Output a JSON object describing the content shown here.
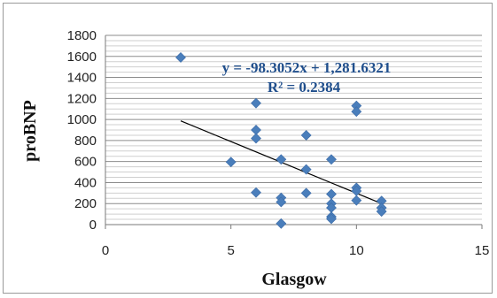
{
  "chart_data": {
    "type": "scatter",
    "xlabel": "Glasgow",
    "ylabel": "proBNP",
    "xlim": [
      0,
      15
    ],
    "ylim": [
      0,
      1800
    ],
    "x_ticks": [
      0,
      5,
      10,
      15
    ],
    "y_ticks": [
      0,
      200,
      400,
      600,
      800,
      1000,
      1200,
      1400,
      1600,
      1800
    ],
    "grid": "horizontal",
    "marker_color": "#4a7ebb",
    "trendline": {
      "type": "linear",
      "slope": -98.3052,
      "intercept": 1281.6321,
      "x_range": [
        3,
        11
      ],
      "color": "#000000",
      "equation_label": "y = -98.3052x + 1,281.6321",
      "r2_label": "R² = 0.2384"
    },
    "series": [
      {
        "points": [
          [
            3,
            1590
          ],
          [
            5,
            595
          ],
          [
            6,
            1155
          ],
          [
            6,
            900
          ],
          [
            6,
            820
          ],
          [
            6,
            305
          ],
          [
            7,
            620
          ],
          [
            7,
            255
          ],
          [
            7,
            215
          ],
          [
            7,
            10
          ],
          [
            8,
            850
          ],
          [
            8,
            525
          ],
          [
            8,
            300
          ],
          [
            9,
            620
          ],
          [
            9,
            290
          ],
          [
            9,
            200
          ],
          [
            9,
            160
          ],
          [
            9,
            75
          ],
          [
            9,
            55
          ],
          [
            10,
            1130
          ],
          [
            10,
            1075
          ],
          [
            10,
            350
          ],
          [
            10,
            320
          ],
          [
            10,
            230
          ],
          [
            11,
            225
          ],
          [
            11,
            160
          ],
          [
            11,
            125
          ]
        ]
      }
    ]
  }
}
